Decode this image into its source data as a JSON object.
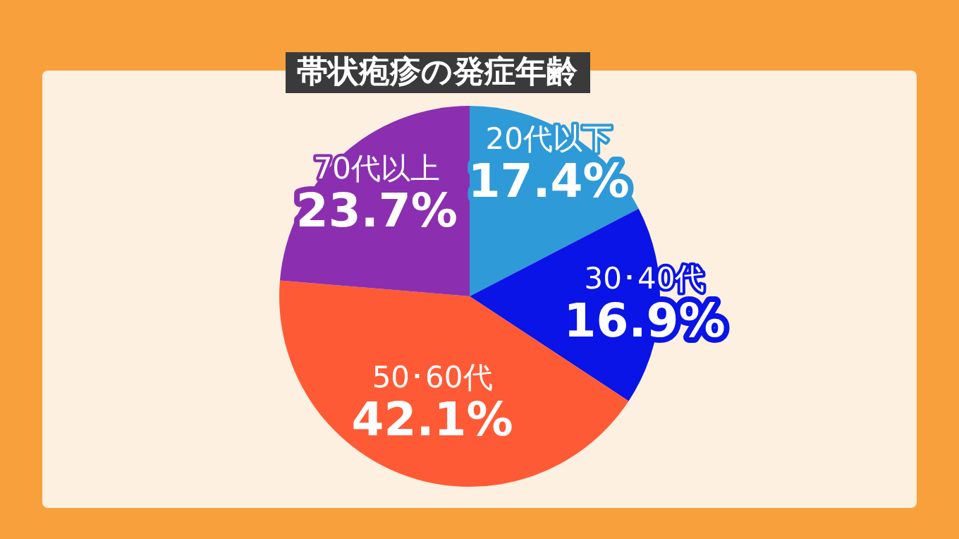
{
  "chart_data": {
    "type": "pie",
    "title": "帯状疱疹の発症年齢",
    "categories": [
      "20代以下",
      "30･40代",
      "50･60代",
      "70代以上"
    ],
    "values": [
      17.4,
      16.9,
      42.1,
      23.7
    ],
    "value_labels": [
      "17.4%",
      "16.9%",
      "42.1%",
      "23.7%"
    ],
    "colors": [
      "#2e9ad8",
      "#0a14e6",
      "#ff5a36",
      "#8b2fb0"
    ],
    "legend": false
  }
}
